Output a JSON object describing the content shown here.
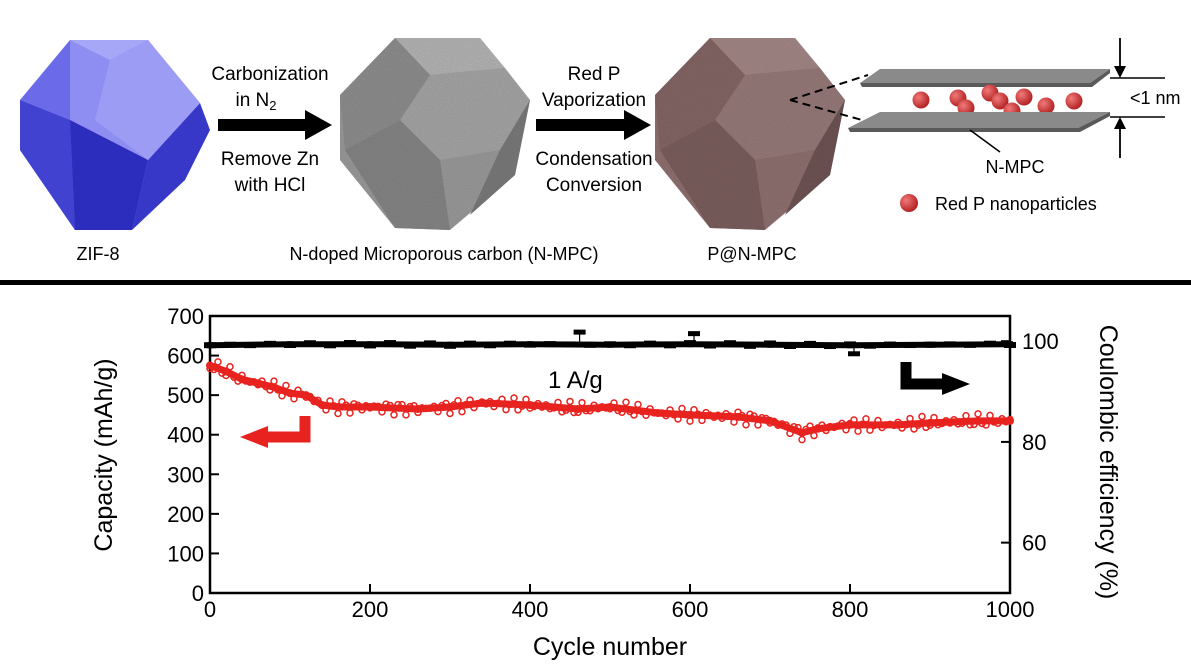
{
  "scheme": {
    "labels": {
      "zif8": "ZIF-8",
      "nmpc_full": "N-doped Microporous carbon (N-MPC)",
      "pnmpc": "P@N-MPC"
    },
    "step1": {
      "top_line1": "Carbonization",
      "top_line2_main": "in N",
      "top_line2_sub": "2",
      "bottom_line1": "Remove Zn",
      "bottom_line2": "with HCl"
    },
    "step2": {
      "top_line1": "Red P",
      "top_line2": "Vaporization",
      "bottom_line1": "Condensation",
      "bottom_line2": "Conversion"
    },
    "inset": {
      "gap_label": "<1 nm",
      "layer_label": "N-MPC",
      "legend_label": "Red P nanoparticles"
    },
    "colors": {
      "zif8_light": "#9a9af5",
      "zif8_dark": "#3b3bd6",
      "carbon": "#8c8c8c",
      "pnmpc": "#8a6a6a",
      "particle": "#cf3535"
    }
  },
  "chart_data": {
    "type": "scatter",
    "xlabel": "Cycle number",
    "ylabel": "Capacity (mAh/g)",
    "y2label": "Coulombic efficiency (%)",
    "xlim": [
      0,
      1000
    ],
    "ylim": [
      0,
      700
    ],
    "y2lim": [
      50,
      105
    ],
    "xticks": [
      0,
      200,
      400,
      600,
      800,
      1000
    ],
    "yticks": [
      0,
      100,
      200,
      300,
      400,
      500,
      600,
      700
    ],
    "y2ticks": [
      60,
      80,
      100
    ],
    "annotation": "1 A/g",
    "series": [
      {
        "axis": "left",
        "color": "#e8231f",
        "x": [
          0,
          20,
          40,
          60,
          80,
          100,
          120,
          140,
          160,
          200,
          260,
          300,
          340,
          400,
          460,
          500,
          560,
          600,
          660,
          700,
          740,
          760,
          800,
          860,
          900,
          960,
          1000
        ],
        "values": [
          575,
          560,
          540,
          530,
          520,
          505,
          500,
          475,
          470,
          470,
          465,
          470,
          480,
          475,
          465,
          470,
          455,
          450,
          445,
          435,
          405,
          415,
          425,
          425,
          430,
          435,
          435
        ]
      },
      {
        "axis": "right",
        "color": "#000000",
        "x": [
          0,
          100,
          200,
          300,
          400,
          500,
          600,
          700,
          800,
          900,
          1000
        ],
        "values": [
          99.2,
          99.4,
          99.4,
          99.3,
          99.4,
          99.3,
          99.4,
          99.3,
          99.2,
          99.3,
          99.4
        ],
        "outliers": [
          {
            "x": 462,
            "y": 101.8
          },
          {
            "x": 605,
            "y": 101.5
          },
          {
            "x": 805,
            "y": 97.5
          }
        ]
      }
    ]
  }
}
